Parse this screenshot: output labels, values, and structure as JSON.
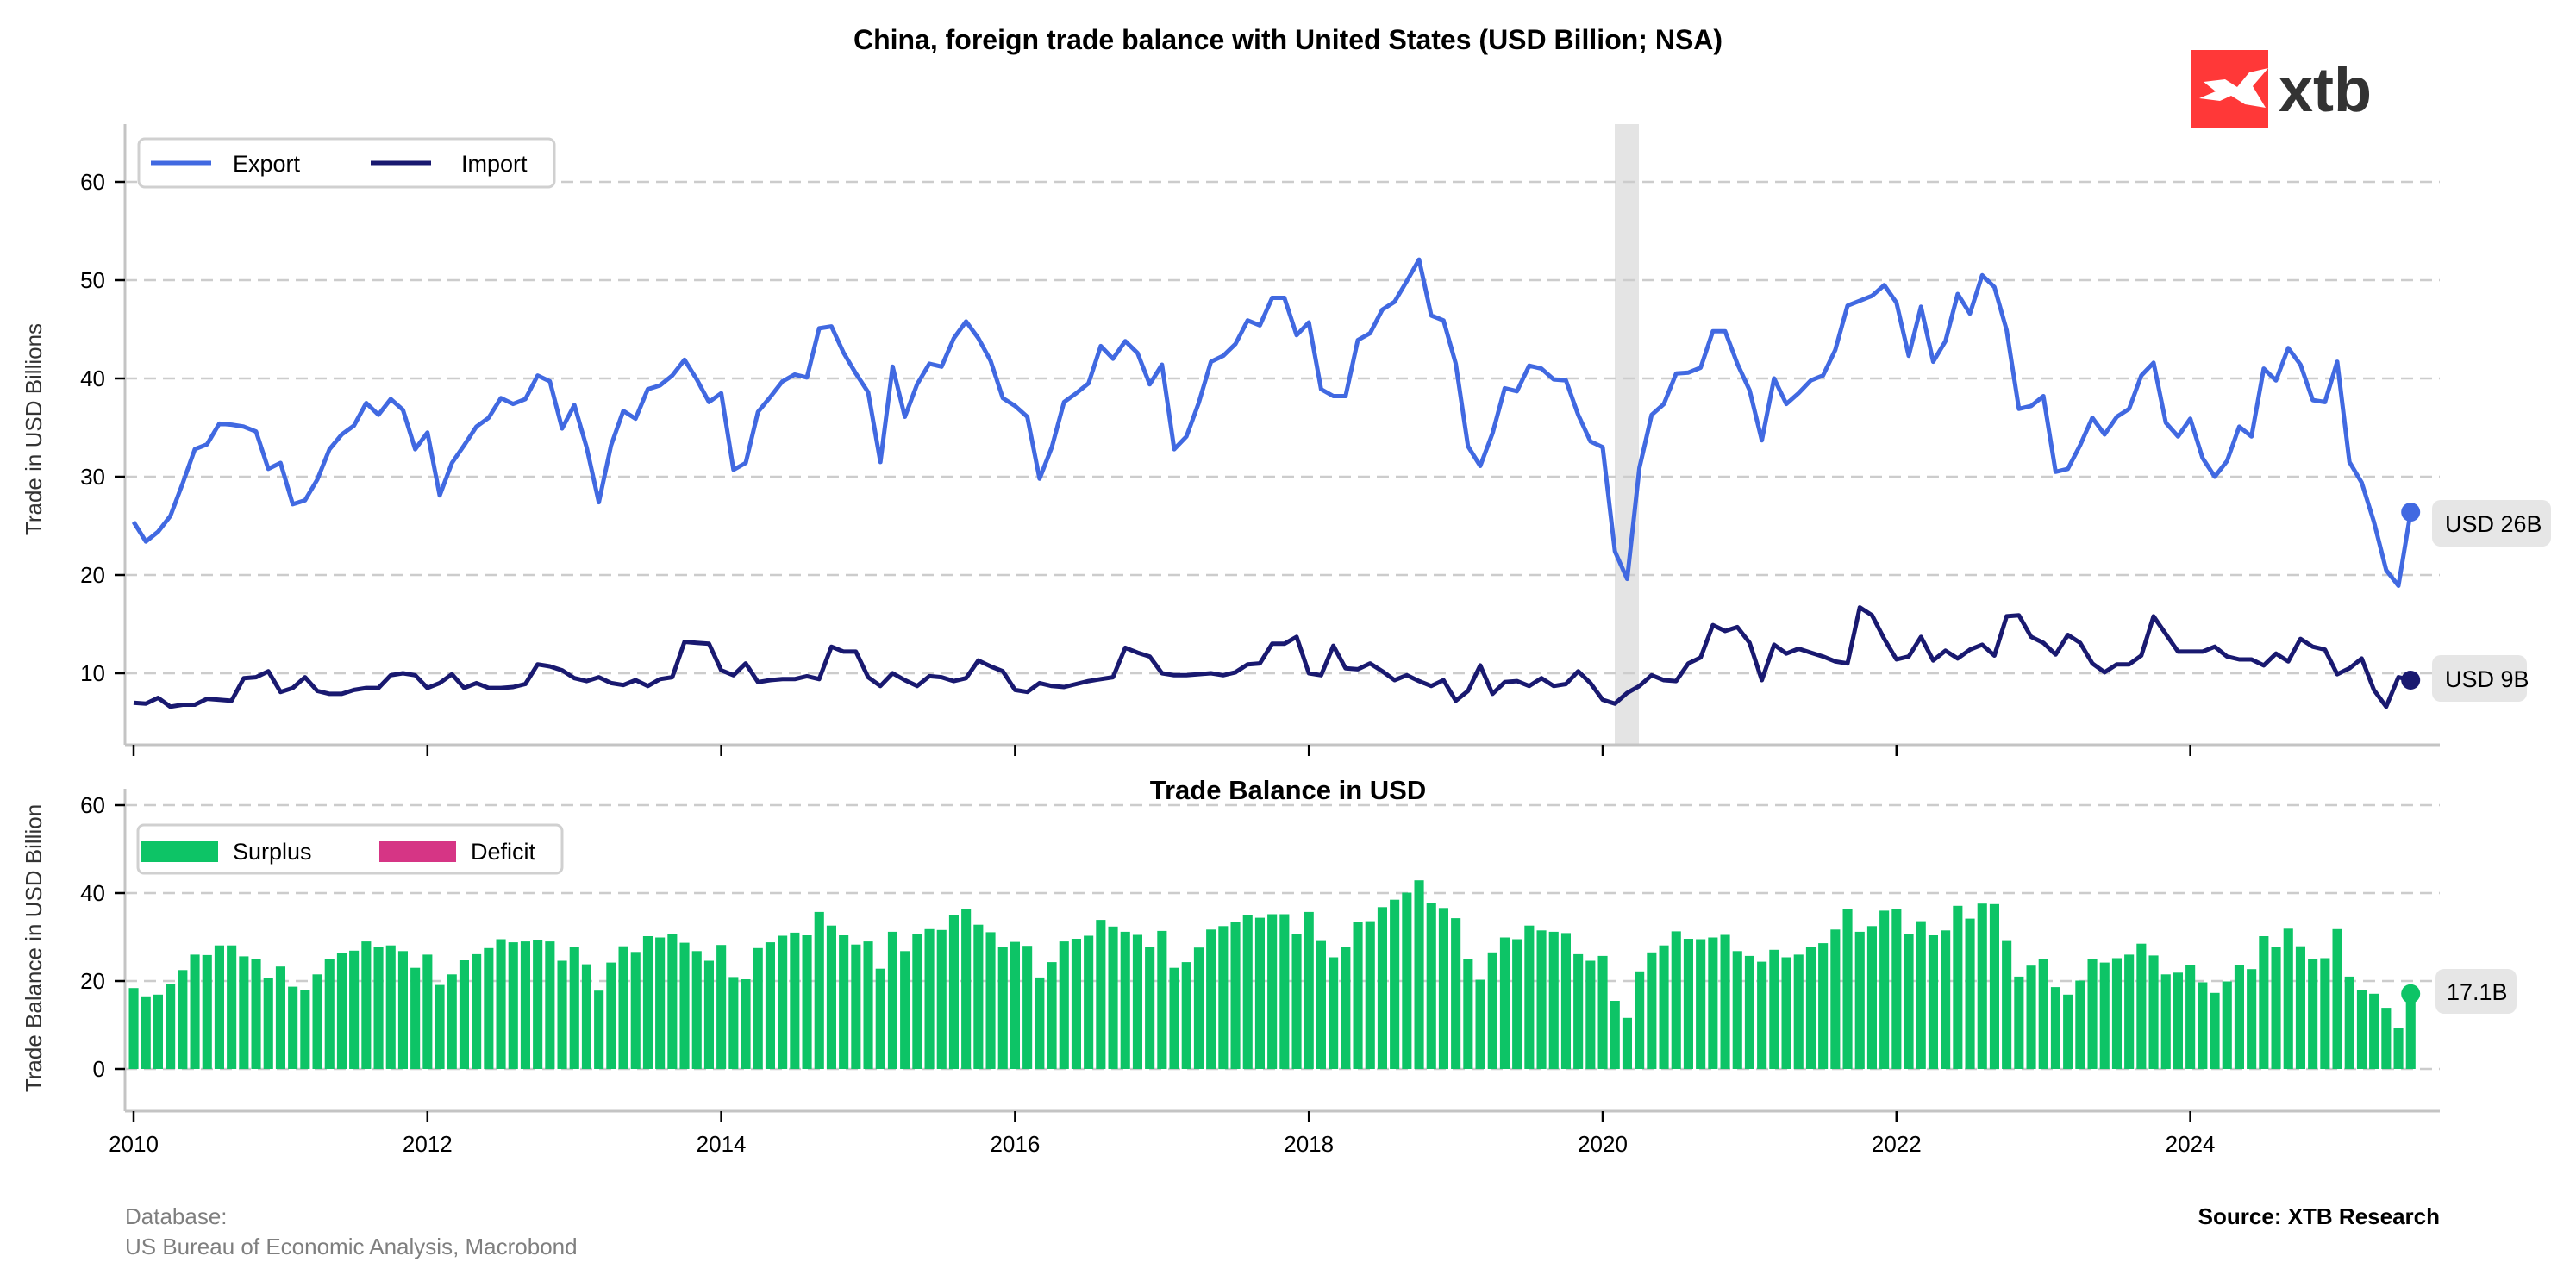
{
  "title": "China, foreign trade balance with United States (USD Billion; NSA)",
  "logo": {
    "text": "xtb",
    "color": "#ff3838"
  },
  "footer": {
    "database_label": "Database:",
    "database_sources": "US Bureau of Economic Analysis, Macrobond",
    "source": "Source: XTB Research"
  },
  "colors": {
    "export": "#4169e1",
    "import": "#191970",
    "surplus": "#0dc466",
    "deficit": "#d63585"
  },
  "chart_data": [
    {
      "type": "line",
      "title": "",
      "ylabel": "Trade in USD Billions",
      "xlabel": "",
      "x_start": "2010-01",
      "frequency": "monthly",
      "ylim": [
        2.7,
        65.9
      ],
      "yticks": [
        "10",
        "20",
        "30",
        "40",
        "50",
        "60"
      ],
      "xticks": [
        "2010",
        "2012",
        "2014",
        "2016",
        "2018",
        "2020",
        "2022",
        "2024"
      ],
      "grid": "horizontal dashed",
      "legend_position": "top-left",
      "shaded_period": [
        "2020-02",
        "2020-04"
      ],
      "series": [
        {
          "name": "Export",
          "end_label": "USD 26B",
          "values": [
            25.4,
            23.4,
            24.4,
            26.0,
            29.3,
            32.8,
            33.3,
            35.4,
            35.3,
            35.1,
            34.6,
            30.8,
            31.4,
            27.2,
            27.6,
            29.7,
            32.8,
            34.3,
            35.2,
            37.5,
            36.3,
            37.9,
            36.8,
            32.8,
            34.5,
            28.1,
            31.4,
            33.2,
            35.1,
            36.0,
            38.0,
            37.4,
            37.9,
            40.3,
            39.7,
            34.9,
            37.3,
            33.0,
            27.4,
            33.2,
            36.7,
            35.9,
            38.9,
            39.3,
            40.3,
            41.9,
            39.9,
            37.6,
            38.5,
            30.7,
            31.4,
            36.6,
            38.1,
            39.7,
            40.4,
            40.1,
            45.1,
            45.3,
            42.6,
            40.5,
            38.6,
            31.5,
            41.2,
            36.1,
            39.4,
            41.5,
            41.2,
            44.1,
            45.8,
            44.1,
            41.8,
            38.0,
            37.2,
            36.1,
            29.8,
            33.0,
            37.6,
            38.5,
            39.5,
            43.3,
            42.0,
            43.8,
            42.6,
            39.4,
            41.4,
            32.8,
            34.1,
            37.5,
            41.7,
            42.3,
            43.5,
            45.9,
            45.4,
            48.2,
            48.2,
            44.4,
            45.7,
            38.9,
            38.2,
            38.2,
            43.9,
            44.6,
            47.0,
            47.8,
            49.9,
            52.1,
            46.4,
            45.9,
            41.5,
            33.1,
            31.1,
            34.4,
            39.0,
            38.7,
            41.3,
            41.0,
            39.9,
            39.8,
            36.3,
            33.6,
            33.0,
            22.4,
            19.6,
            30.9,
            36.3,
            37.4,
            40.5,
            40.6,
            41.1,
            44.8,
            44.8,
            41.5,
            38.8,
            33.7,
            40.0,
            37.4,
            38.5,
            39.8,
            40.3,
            42.9,
            47.4,
            47.9,
            48.4,
            49.5,
            47.7,
            42.3,
            47.3,
            41.7,
            43.8,
            48.6,
            46.6,
            50.5,
            49.3,
            44.9,
            36.9,
            37.2,
            38.2,
            30.5,
            30.8,
            33.2,
            36.0,
            34.3,
            36.1,
            36.9,
            40.3,
            41.6,
            35.5,
            34.1,
            35.9,
            31.9,
            30.0,
            31.6,
            35.1,
            34.1,
            41.0,
            39.8,
            43.1,
            41.4,
            37.8,
            37.6,
            41.7,
            31.5,
            29.4,
            25.4,
            20.5,
            18.9,
            26.4
          ]
        },
        {
          "name": "Import",
          "end_label": "USD 9B",
          "values": [
            7.0,
            6.9,
            7.5,
            6.6,
            6.8,
            6.8,
            7.4,
            7.3,
            7.2,
            9.5,
            9.6,
            10.2,
            8.1,
            8.5,
            9.6,
            8.2,
            7.9,
            7.9,
            8.3,
            8.5,
            8.5,
            9.8,
            10.0,
            9.8,
            8.5,
            9.0,
            9.9,
            8.5,
            9.0,
            8.5,
            8.5,
            8.6,
            8.9,
            10.9,
            10.7,
            10.3,
            9.5,
            9.2,
            9.6,
            9.0,
            8.8,
            9.3,
            8.7,
            9.4,
            9.6,
            13.2,
            13.1,
            13.0,
            10.3,
            9.8,
            11.0,
            9.1,
            9.3,
            9.4,
            9.4,
            9.7,
            9.4,
            12.7,
            12.2,
            12.2,
            9.6,
            8.7,
            10.0,
            9.3,
            8.7,
            9.7,
            9.6,
            9.2,
            9.5,
            11.3,
            10.7,
            10.2,
            8.3,
            8.1,
            9.0,
            8.7,
            8.6,
            8.9,
            9.2,
            9.4,
            9.6,
            12.6,
            12.1,
            11.7,
            10.0,
            9.8,
            9.8,
            9.9,
            10.0,
            9.8,
            10.1,
            10.9,
            11.0,
            13.0,
            13.0,
            13.7,
            10.0,
            9.8,
            12.8,
            10.5,
            10.4,
            11.0,
            10.2,
            9.3,
            9.8,
            9.2,
            8.7,
            9.3,
            7.2,
            8.2,
            10.8,
            7.9,
            9.1,
            9.2,
            8.7,
            9.5,
            8.7,
            8.9,
            10.2,
            9.0,
            7.3,
            6.9,
            8.0,
            8.7,
            9.8,
            9.3,
            9.2,
            11.0,
            11.6,
            14.9,
            14.3,
            14.7,
            13.1,
            9.3,
            12.9,
            12.0,
            12.5,
            12.1,
            11.7,
            11.2,
            11.0,
            16.7,
            15.9,
            13.5,
            11.4,
            11.7,
            13.7,
            11.3,
            12.3,
            11.5,
            12.4,
            12.9,
            11.8,
            15.8,
            15.9,
            13.7,
            13.1,
            11.9,
            13.9,
            13.1,
            11.0,
            10.1,
            10.9,
            10.9,
            11.8,
            15.8,
            14.0,
            12.2,
            12.2,
            12.2,
            12.7,
            11.7,
            11.4,
            11.4,
            10.8,
            12.0,
            11.2,
            13.5,
            12.7,
            12.4,
            9.9,
            10.5,
            11.5,
            8.3,
            6.6,
            9.6,
            9.3
          ]
        }
      ]
    },
    {
      "type": "bar",
      "title": "Trade Balance in USD",
      "ylabel": "Trade Balance in USD Billion",
      "xlabel": "",
      "x_start": "2010-01",
      "frequency": "monthly",
      "derived_from": "Export minus Import",
      "ylim": [
        -8.6,
        64.5
      ],
      "yticks": [
        "0",
        "20",
        "40",
        "60"
      ],
      "xticks": [
        "2010",
        "2012",
        "2014",
        "2016",
        "2018",
        "2020",
        "2022",
        "2024"
      ],
      "legend_position": "top-left",
      "legend": [
        "Surplus",
        "Deficit"
      ],
      "end_label": "17.1B"
    }
  ]
}
